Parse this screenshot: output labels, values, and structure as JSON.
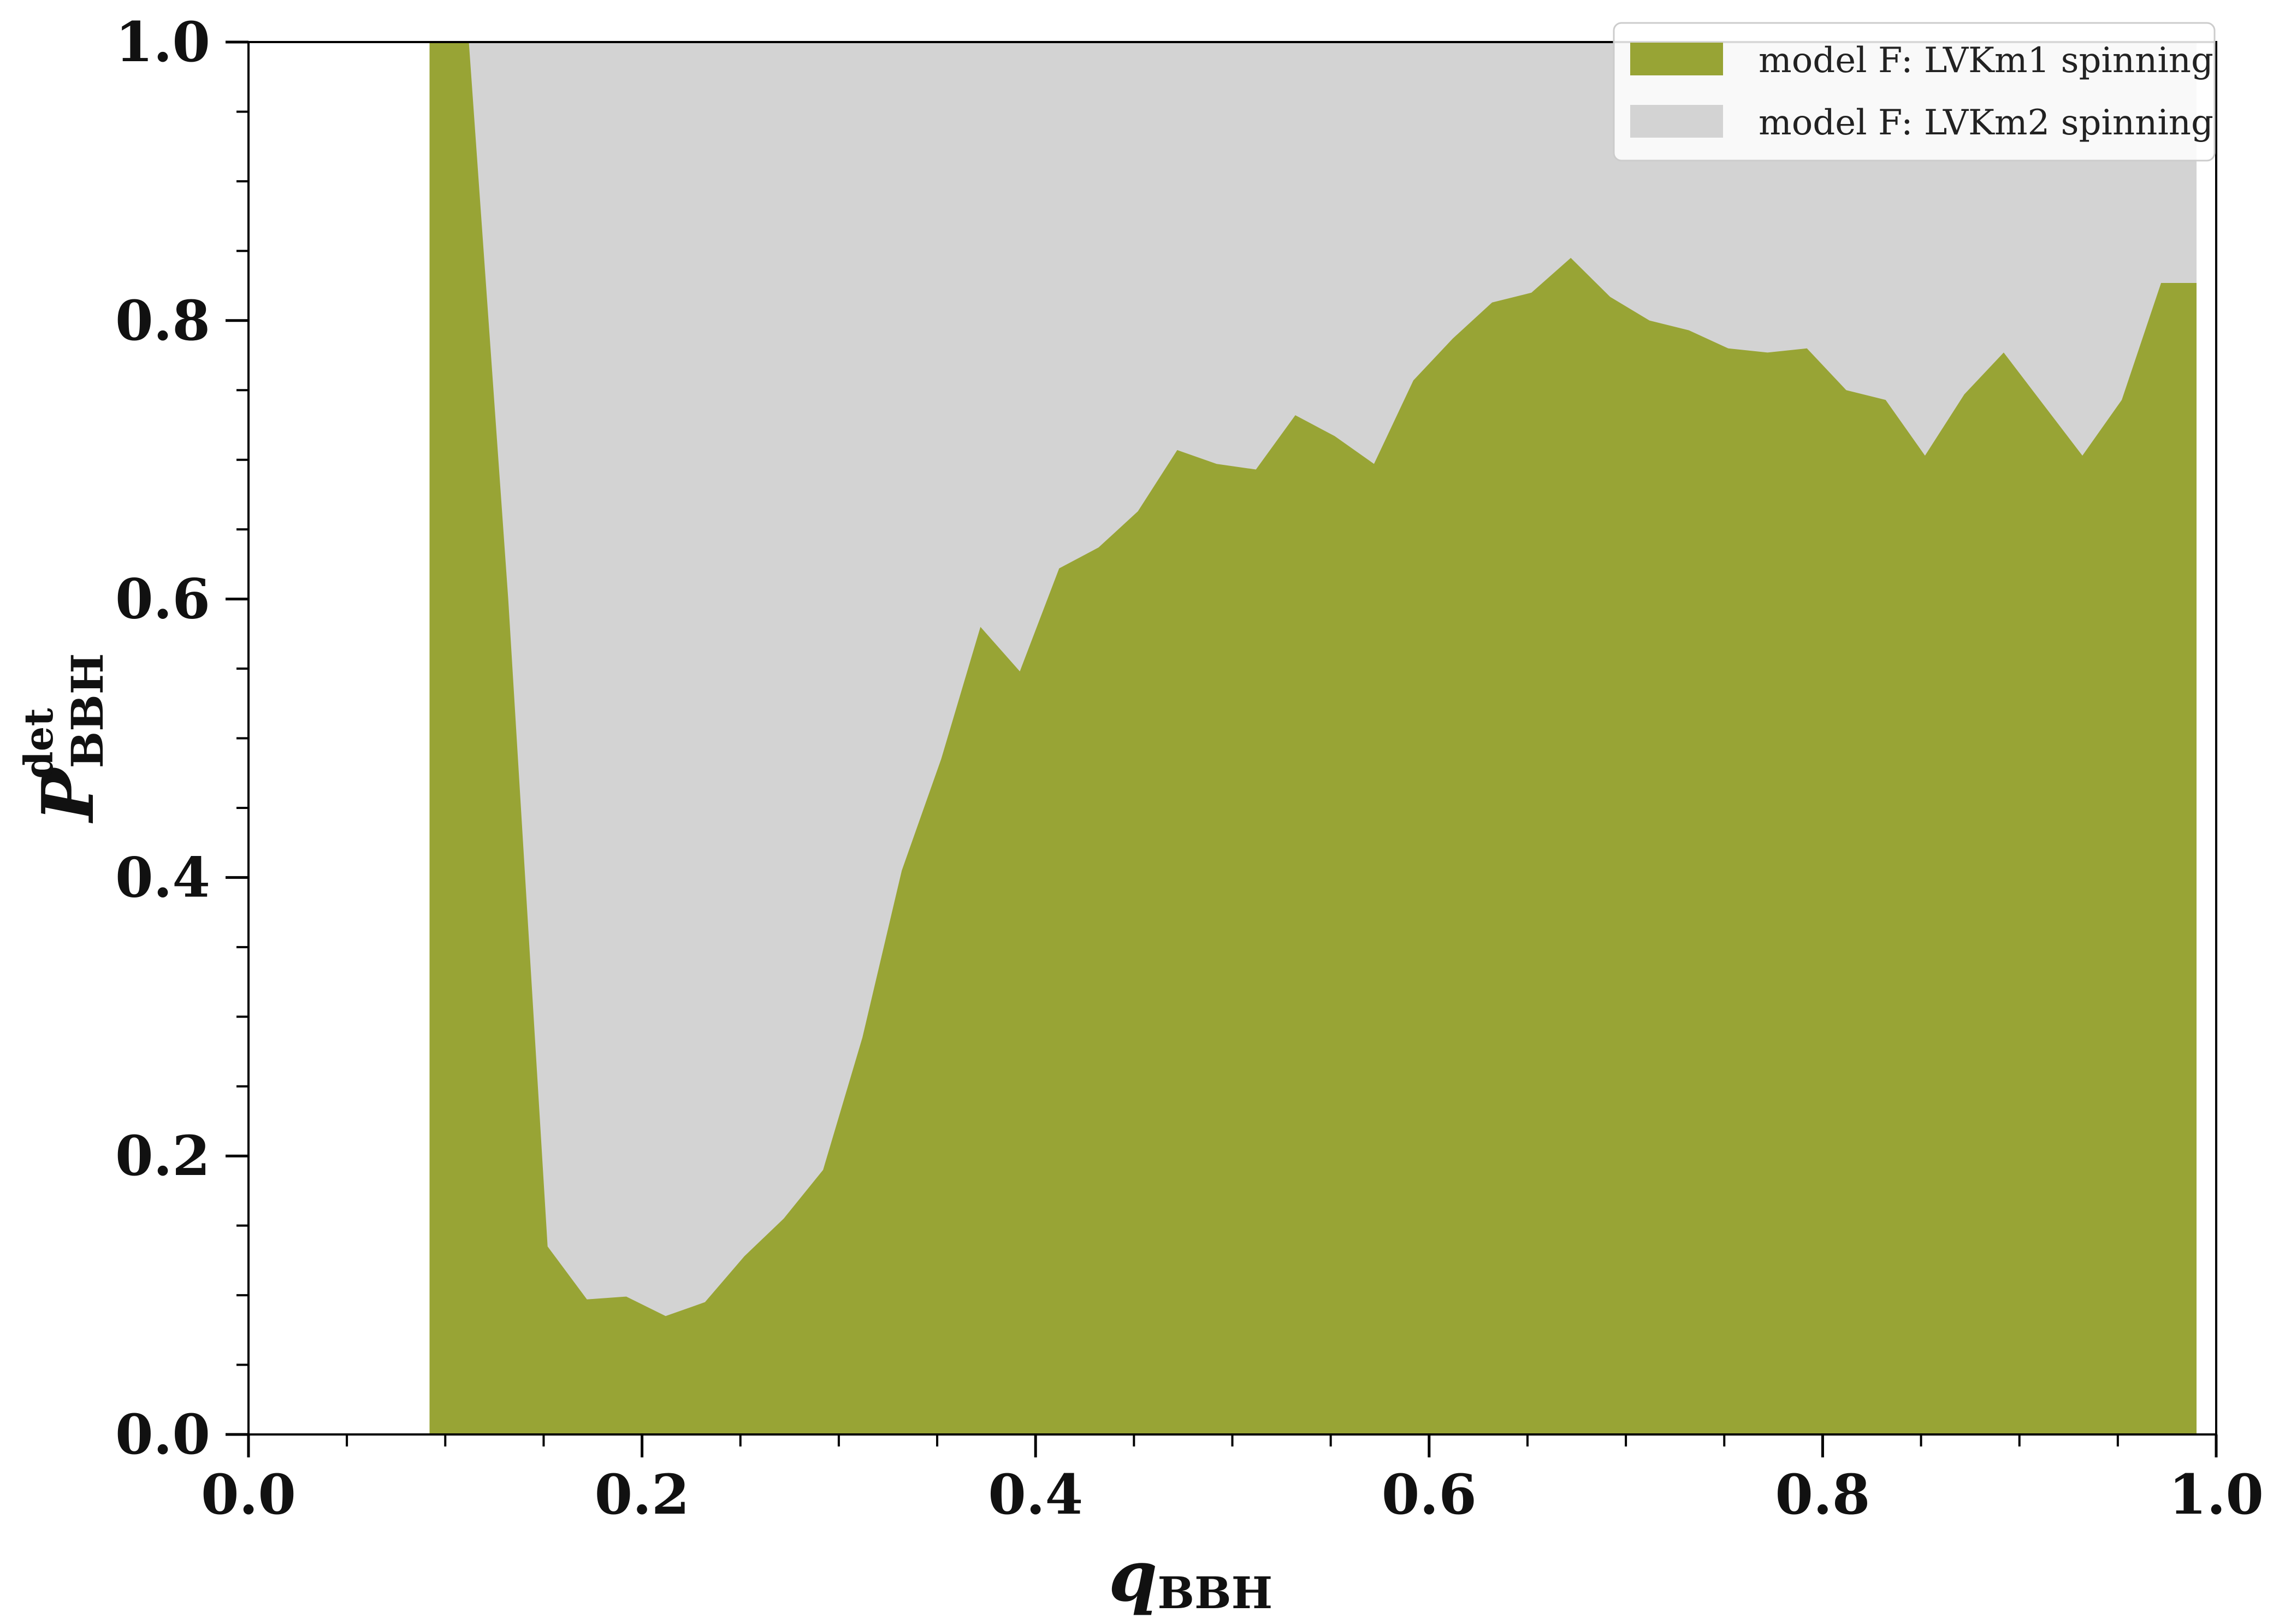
{
  "chart_data": {
    "type": "area",
    "xlim": [
      0.0,
      1.0
    ],
    "ylim": [
      0.0,
      1.0
    ],
    "x_ticks": [
      "0.0",
      "0.2",
      "0.4",
      "0.6",
      "0.8",
      "1.0"
    ],
    "y_ticks": [
      "0.0",
      "0.2",
      "0.4",
      "0.6",
      "0.8",
      "1.0"
    ],
    "xlabel": {
      "main": "q",
      "sub": "BBH"
    },
    "ylabel": {
      "main": "P",
      "sub": "BBH",
      "sup": "det"
    },
    "legend_position": "top-right",
    "grid": false,
    "x": [
      0.092,
      0.112,
      0.132,
      0.152,
      0.172,
      0.192,
      0.212,
      0.232,
      0.252,
      0.272,
      0.292,
      0.312,
      0.332,
      0.352,
      0.372,
      0.392,
      0.412,
      0.432,
      0.452,
      0.472,
      0.492,
      0.512,
      0.532,
      0.552,
      0.572,
      0.592,
      0.612,
      0.632,
      0.652,
      0.672,
      0.692,
      0.712,
      0.732,
      0.752,
      0.772,
      0.792,
      0.812,
      0.832,
      0.852,
      0.872,
      0.892,
      0.912,
      0.932,
      0.952,
      0.972,
      0.99
    ],
    "series": [
      {
        "name": "model F: LVKm1 spinning",
        "color": "#98a435",
        "values": [
          1.0,
          1.0,
          0.6,
          0.135,
          0.097,
          0.099,
          0.085,
          0.095,
          0.128,
          0.155,
          0.19,
          0.285,
          0.405,
          0.485,
          0.58,
          0.548,
          0.622,
          0.637,
          0.663,
          0.707,
          0.697,
          0.693,
          0.732,
          0.717,
          0.697,
          0.757,
          0.787,
          0.813,
          0.82,
          0.845,
          0.817,
          0.8,
          0.793,
          0.78,
          0.777,
          0.78,
          0.75,
          0.743,
          0.703,
          0.747,
          0.777,
          0.74,
          0.703,
          0.743,
          0.827,
          0.827
        ]
      },
      {
        "name": "model F: LVKm2 spinning",
        "color": "#d3d3d3",
        "values": [
          1.0,
          1.0,
          1.0,
          1.0,
          1.0,
          1.0,
          1.0,
          1.0,
          1.0,
          1.0,
          1.0,
          1.0,
          1.0,
          1.0,
          1.0,
          1.0,
          1.0,
          1.0,
          1.0,
          1.0,
          1.0,
          1.0,
          1.0,
          1.0,
          1.0,
          1.0,
          1.0,
          1.0,
          1.0,
          1.0,
          1.0,
          1.0,
          1.0,
          1.0,
          1.0,
          1.0,
          1.0,
          1.0,
          1.0,
          1.0,
          1.0,
          1.0,
          1.0,
          1.0,
          1.0,
          1.0
        ]
      }
    ]
  }
}
